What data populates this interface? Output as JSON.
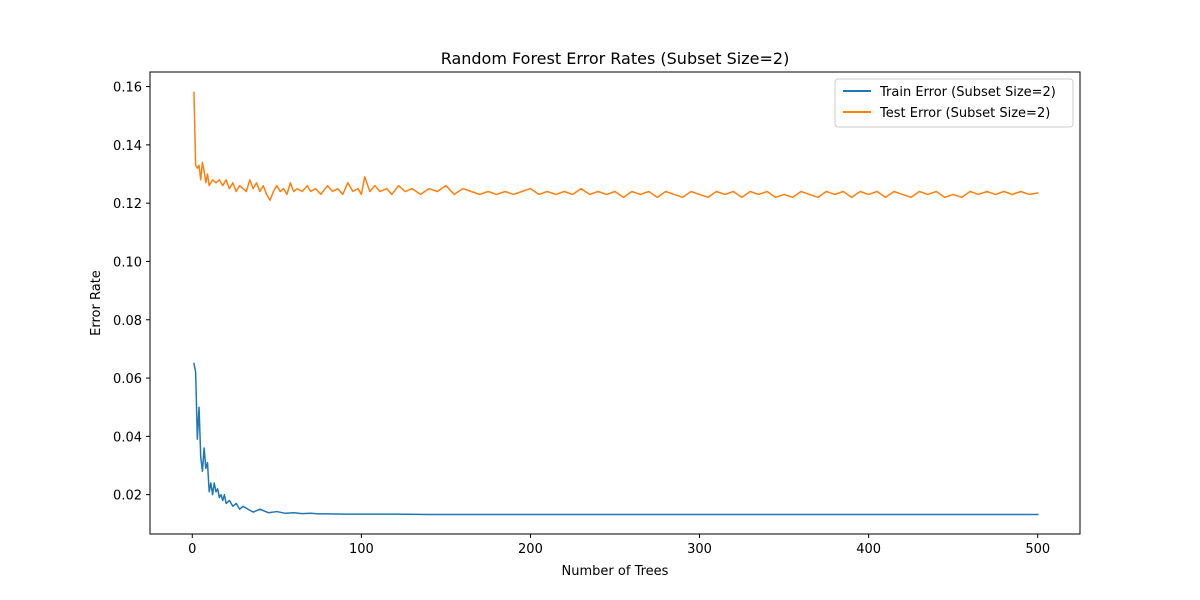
{
  "chart_data": {
    "type": "line",
    "title": "Random Forest Error Rates (Subset Size=2)",
    "xlabel": "Number of Trees",
    "ylabel": "Error Rate",
    "xlim": [
      -25,
      525
    ],
    "ylim": [
      0.0065,
      0.165
    ],
    "x_ticks": [
      0,
      100,
      200,
      300,
      400,
      500
    ],
    "y_ticks": [
      0.02,
      0.04,
      0.06,
      0.08,
      0.1,
      0.12,
      0.14,
      0.16
    ],
    "y_tick_labels": [
      "0.02",
      "0.04",
      "0.06",
      "0.08",
      "0.10",
      "0.12",
      "0.14",
      "0.16"
    ],
    "grid": false,
    "legend_position": "top-right",
    "series": [
      {
        "name": "Train Error (Subset Size=2)",
        "color": "#1f77b4",
        "points": [
          [
            1,
            0.065
          ],
          [
            2,
            0.062
          ],
          [
            3,
            0.039
          ],
          [
            4,
            0.05
          ],
          [
            5,
            0.033
          ],
          [
            6,
            0.028
          ],
          [
            7,
            0.036
          ],
          [
            8,
            0.029
          ],
          [
            9,
            0.031
          ],
          [
            10,
            0.021
          ],
          [
            11,
            0.024
          ],
          [
            12,
            0.02
          ],
          [
            13,
            0.024
          ],
          [
            14,
            0.021
          ],
          [
            15,
            0.022
          ],
          [
            16,
            0.019
          ],
          [
            17,
            0.02
          ],
          [
            18,
            0.018
          ],
          [
            19,
            0.02
          ],
          [
            20,
            0.017
          ],
          [
            22,
            0.018
          ],
          [
            24,
            0.016
          ],
          [
            26,
            0.017
          ],
          [
            28,
            0.015
          ],
          [
            30,
            0.016
          ],
          [
            33,
            0.015
          ],
          [
            36,
            0.014
          ],
          [
            40,
            0.015
          ],
          [
            45,
            0.0138
          ],
          [
            50,
            0.0142
          ],
          [
            55,
            0.0136
          ],
          [
            60,
            0.0138
          ],
          [
            65,
            0.0135
          ],
          [
            70,
            0.0136
          ],
          [
            75,
            0.0134
          ],
          [
            80,
            0.0134
          ],
          [
            90,
            0.0133
          ],
          [
            100,
            0.0133
          ],
          [
            120,
            0.0133
          ],
          [
            140,
            0.0132
          ],
          [
            200,
            0.0132
          ],
          [
            300,
            0.0132
          ],
          [
            400,
            0.0132
          ],
          [
            500,
            0.0132
          ]
        ]
      },
      {
        "name": "Test Error (Subset Size=2)",
        "color": "#ff7f0e",
        "points": [
          [
            1,
            0.158
          ],
          [
            2,
            0.133
          ],
          [
            3,
            0.132
          ],
          [
            4,
            0.133
          ],
          [
            5,
            0.128
          ],
          [
            6,
            0.134
          ],
          [
            7,
            0.131
          ],
          [
            8,
            0.127
          ],
          [
            9,
            0.13
          ],
          [
            10,
            0.126
          ],
          [
            12,
            0.128
          ],
          [
            14,
            0.127
          ],
          [
            16,
            0.128
          ],
          [
            18,
            0.126
          ],
          [
            20,
            0.128
          ],
          [
            22,
            0.125
          ],
          [
            24,
            0.127
          ],
          [
            26,
            0.124
          ],
          [
            28,
            0.126
          ],
          [
            30,
            0.125
          ],
          [
            32,
            0.124
          ],
          [
            34,
            0.128
          ],
          [
            36,
            0.125
          ],
          [
            38,
            0.127
          ],
          [
            40,
            0.124
          ],
          [
            42,
            0.126
          ],
          [
            44,
            0.123
          ],
          [
            46,
            0.121
          ],
          [
            48,
            0.124
          ],
          [
            50,
            0.126
          ],
          [
            52,
            0.124
          ],
          [
            54,
            0.125
          ],
          [
            56,
            0.123
          ],
          [
            58,
            0.127
          ],
          [
            60,
            0.124
          ],
          [
            62,
            0.125
          ],
          [
            65,
            0.124
          ],
          [
            68,
            0.126
          ],
          [
            70,
            0.124
          ],
          [
            73,
            0.125
          ],
          [
            76,
            0.123
          ],
          [
            80,
            0.126
          ],
          [
            83,
            0.124
          ],
          [
            86,
            0.125
          ],
          [
            89,
            0.123
          ],
          [
            92,
            0.127
          ],
          [
            95,
            0.124
          ],
          [
            98,
            0.125
          ],
          [
            100,
            0.123
          ],
          [
            102,
            0.129
          ],
          [
            105,
            0.124
          ],
          [
            108,
            0.126
          ],
          [
            111,
            0.124
          ],
          [
            115,
            0.125
          ],
          [
            118,
            0.123
          ],
          [
            122,
            0.126
          ],
          [
            126,
            0.124
          ],
          [
            130,
            0.125
          ],
          [
            135,
            0.123
          ],
          [
            140,
            0.125
          ],
          [
            145,
            0.124
          ],
          [
            150,
            0.126
          ],
          [
            155,
            0.123
          ],
          [
            160,
            0.125
          ],
          [
            165,
            0.124
          ],
          [
            170,
            0.123
          ],
          [
            175,
            0.124
          ],
          [
            180,
            0.123
          ],
          [
            185,
            0.124
          ],
          [
            190,
            0.123
          ],
          [
            195,
            0.124
          ],
          [
            200,
            0.125
          ],
          [
            205,
            0.123
          ],
          [
            210,
            0.124
          ],
          [
            215,
            0.123
          ],
          [
            220,
            0.124
          ],
          [
            225,
            0.123
          ],
          [
            230,
            0.125
          ],
          [
            235,
            0.123
          ],
          [
            240,
            0.124
          ],
          [
            245,
            0.123
          ],
          [
            250,
            0.124
          ],
          [
            255,
            0.122
          ],
          [
            260,
            0.124
          ],
          [
            265,
            0.123
          ],
          [
            270,
            0.124
          ],
          [
            275,
            0.122
          ],
          [
            280,
            0.124
          ],
          [
            285,
            0.123
          ],
          [
            290,
            0.122
          ],
          [
            295,
            0.124
          ],
          [
            300,
            0.123
          ],
          [
            305,
            0.122
          ],
          [
            310,
            0.124
          ],
          [
            315,
            0.123
          ],
          [
            320,
            0.124
          ],
          [
            325,
            0.122
          ],
          [
            330,
            0.124
          ],
          [
            335,
            0.123
          ],
          [
            340,
            0.124
          ],
          [
            345,
            0.122
          ],
          [
            350,
            0.123
          ],
          [
            355,
            0.122
          ],
          [
            360,
            0.124
          ],
          [
            365,
            0.123
          ],
          [
            370,
            0.122
          ],
          [
            375,
            0.124
          ],
          [
            380,
            0.123
          ],
          [
            385,
            0.124
          ],
          [
            390,
            0.122
          ],
          [
            395,
            0.124
          ],
          [
            400,
            0.123
          ],
          [
            405,
            0.124
          ],
          [
            410,
            0.122
          ],
          [
            415,
            0.124
          ],
          [
            420,
            0.123
          ],
          [
            425,
            0.122
          ],
          [
            430,
            0.124
          ],
          [
            435,
            0.123
          ],
          [
            440,
            0.124
          ],
          [
            445,
            0.122
          ],
          [
            450,
            0.123
          ],
          [
            455,
            0.122
          ],
          [
            460,
            0.124
          ],
          [
            465,
            0.123
          ],
          [
            470,
            0.124
          ],
          [
            475,
            0.123
          ],
          [
            480,
            0.124
          ],
          [
            485,
            0.123
          ],
          [
            490,
            0.124
          ],
          [
            495,
            0.123
          ],
          [
            500,
            0.1235
          ]
        ]
      }
    ]
  }
}
